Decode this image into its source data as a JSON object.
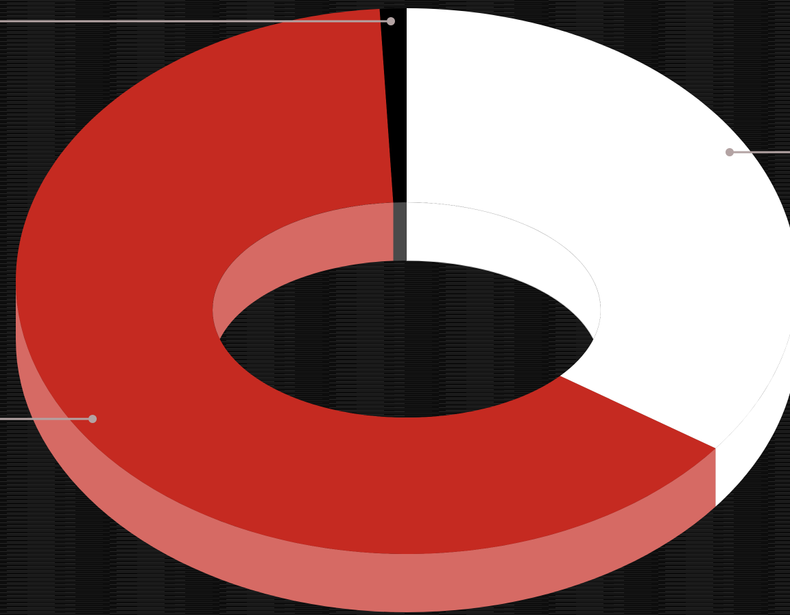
{
  "chart_data": {
    "type": "pie",
    "style": "3d-donut",
    "title": "",
    "legend": "none",
    "grid": false,
    "slices": [
      {
        "value": 35.5,
        "color": "#ffffff"
      },
      {
        "value": 63.4,
        "color": "#c52a21"
      },
      {
        "value": 1.1,
        "color": "#000000"
      }
    ]
  },
  "colors": {
    "background": "#0b0b0b",
    "leader_line": "#b3a3a3"
  }
}
